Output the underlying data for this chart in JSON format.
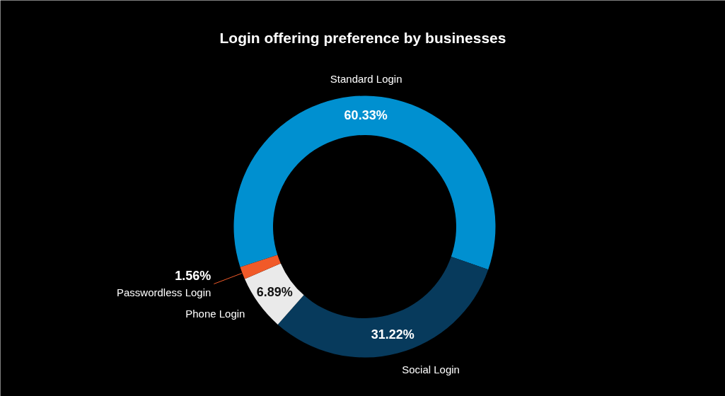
{
  "chart_data": {
    "type": "donut",
    "title": "Login offering preference by businesses",
    "categories": [
      "Standard Login",
      "Social Login",
      "Phone Login",
      "Passwordless Login"
    ],
    "values": [
      60.33,
      31.22,
      6.89,
      1.56
    ],
    "colors": [
      "#0090d0",
      "#073a5c",
      "#eaeaea",
      "#f15a29"
    ],
    "value_labels": [
      "60.33%",
      "31.22%",
      "6.89%",
      "1.56%"
    ]
  }
}
